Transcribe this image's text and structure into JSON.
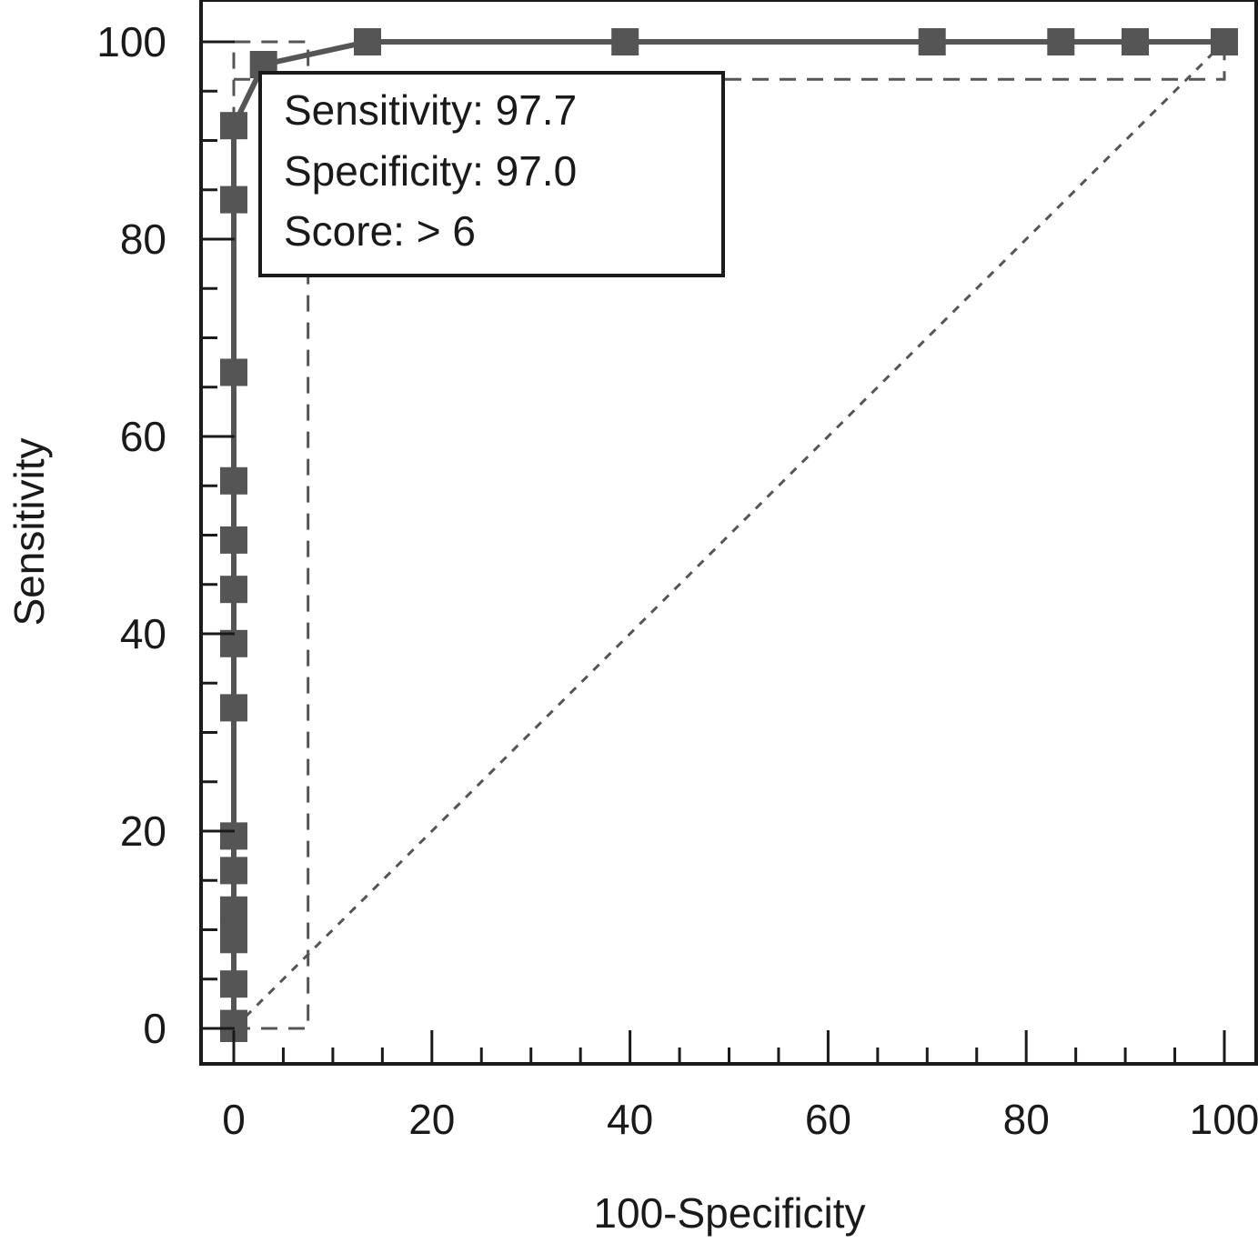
{
  "chart_data": {
    "type": "line",
    "xlabel": "100-Specificity",
    "ylabel": "Sensitivity",
    "xlim": [
      0,
      100
    ],
    "ylim": [
      0,
      100
    ],
    "xticks": [
      "0",
      "20",
      "40",
      "60",
      "80",
      "100"
    ],
    "yticks": [
      "0",
      "20",
      "40",
      "60",
      "80",
      "100"
    ],
    "xtick_values": [
      0,
      20,
      40,
      60,
      80,
      100
    ],
    "ytick_values": [
      0,
      20,
      40,
      60,
      80,
      100
    ],
    "series": [
      {
        "points": [
          [
            0,
            0
          ],
          [
            0,
            0.5
          ],
          [
            0,
            4.5
          ],
          [
            0,
            9
          ],
          [
            0,
            11
          ],
          [
            0,
            12
          ],
          [
            0,
            16
          ],
          [
            0,
            19.5
          ],
          [
            0,
            32.5
          ],
          [
            0,
            39
          ],
          [
            0,
            44.5
          ],
          [
            0,
            49.5
          ],
          [
            0,
            55.5
          ],
          [
            0,
            66.5
          ],
          [
            0,
            84
          ],
          [
            0,
            91.5
          ],
          [
            3,
            97.7
          ],
          [
            13.5,
            100
          ],
          [
            39.5,
            100
          ],
          [
            70.5,
            100
          ],
          [
            83.5,
            100
          ],
          [
            91,
            100
          ],
          [
            100,
            100
          ]
        ],
        "color": "#555555"
      }
    ],
    "reference_line": [
      [
        0,
        0
      ],
      [
        100,
        100
      ]
    ],
    "criterion_box": {
      "x": [
        0,
        7.5
      ],
      "y": [
        0,
        100
      ]
    },
    "criterion_upper_box": {
      "x": [
        0,
        100
      ],
      "y": [
        96.2,
        100
      ]
    },
    "annotation": {
      "lines": [
        "Sensitivity: 97.7",
        "Specificity: 97.0",
        "Score: > 6"
      ]
    },
    "grid": false
  }
}
